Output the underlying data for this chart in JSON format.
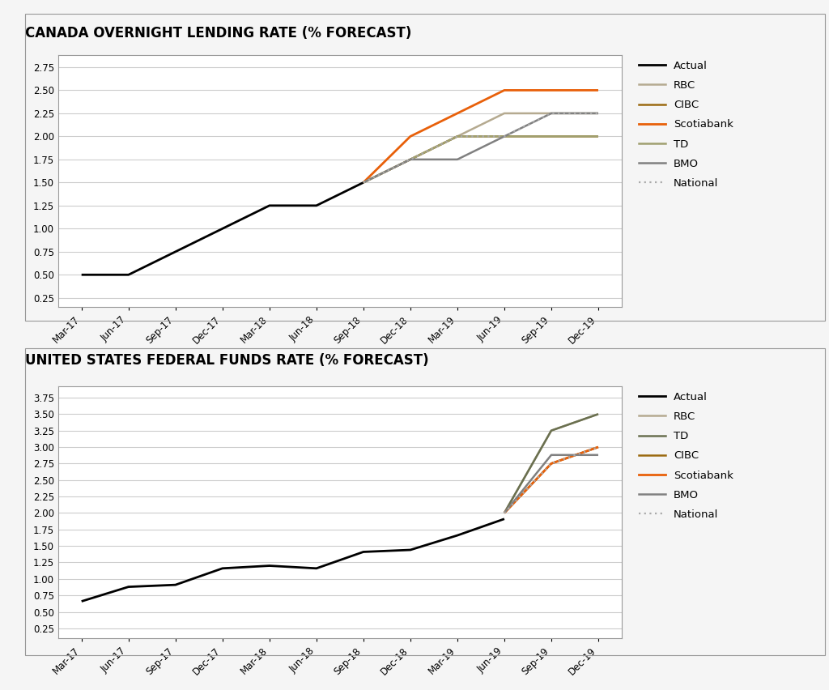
{
  "title1": "CANADA OVERNIGHT LENDING RATE (% FORECAST)",
  "title2": "UNITED STATES FEDERAL FUNDS RATE (% FORECAST)",
  "x_labels": [
    "Mar-17",
    "Jun-17",
    "Sep-17",
    "Dec-17",
    "Mar-18",
    "Jun-18",
    "Sep-18",
    "Dec-18",
    "Mar-19",
    "Jun-19",
    "Sep-19",
    "Dec-19"
  ],
  "canada": {
    "actual": {
      "x": [
        0,
        1,
        2,
        3,
        4,
        5,
        6
      ],
      "y": [
        0.5,
        0.5,
        0.75,
        1.0,
        1.25,
        1.25,
        1.5
      ],
      "color": "#000000",
      "lw": 2.0,
      "linestyle": "solid",
      "label": "Actual"
    },
    "rbc": {
      "x": [
        6,
        7,
        8,
        9,
        10,
        11
      ],
      "y": [
        1.5,
        1.75,
        2.0,
        2.25,
        2.25,
        2.25
      ],
      "color": "#b5aa90",
      "lw": 1.8,
      "linestyle": "solid",
      "label": "RBC"
    },
    "cibc": {
      "x": [
        6,
        7,
        8,
        9,
        10,
        11
      ],
      "y": [
        1.5,
        1.75,
        2.0,
        2.0,
        2.0,
        2.0
      ],
      "color": "#9B6A10",
      "lw": 1.8,
      "linestyle": "solid",
      "label": "CIBC"
    },
    "scotiabank": {
      "x": [
        6,
        7,
        8,
        9,
        10,
        11
      ],
      "y": [
        1.5,
        2.0,
        2.25,
        2.5,
        2.5,
        2.5
      ],
      "color": "#E8600A",
      "lw": 2.0,
      "linestyle": "solid",
      "label": "Scotiabank"
    },
    "td": {
      "x": [
        6,
        7,
        8,
        9,
        10,
        11
      ],
      "y": [
        1.5,
        1.75,
        2.0,
        2.0,
        2.0,
        2.0
      ],
      "color": "#a0a070",
      "lw": 1.8,
      "linestyle": "solid",
      "label": "TD"
    },
    "bmo": {
      "x": [
        6,
        7,
        8,
        9,
        10,
        11
      ],
      "y": [
        1.5,
        1.75,
        1.75,
        2.0,
        2.25,
        2.25
      ],
      "color": "#808080",
      "lw": 1.8,
      "linestyle": "solid",
      "label": "BMO"
    },
    "national": {
      "x": [
        6,
        7,
        8,
        9,
        10,
        11
      ],
      "y": [
        1.5,
        1.75,
        2.0,
        2.0,
        2.25,
        2.25
      ],
      "color": "#aaaaaa",
      "lw": 1.6,
      "linestyle": "dotted",
      "label": "National"
    }
  },
  "us": {
    "actual": {
      "x": [
        0,
        1,
        2,
        3,
        4,
        5,
        6,
        7,
        8,
        9
      ],
      "y": [
        0.66,
        0.88,
        0.91,
        1.16,
        1.2,
        1.16,
        1.41,
        1.44,
        1.66,
        1.91
      ],
      "color": "#000000",
      "lw": 2.0,
      "linestyle": "solid",
      "label": "Actual"
    },
    "rbc": {
      "x": [
        9,
        10,
        11
      ],
      "y": [
        2.0,
        3.25,
        3.5
      ],
      "color": "#b5aa90",
      "lw": 1.8,
      "linestyle": "solid",
      "label": "RBC"
    },
    "td": {
      "x": [
        9,
        10,
        11
      ],
      "y": [
        2.0,
        3.25,
        3.5
      ],
      "color": "#6a7050",
      "lw": 1.8,
      "linestyle": "solid",
      "label": "TD"
    },
    "cibc": {
      "x": [
        9,
        10,
        11
      ],
      "y": [
        2.0,
        2.75,
        3.0
      ],
      "color": "#9B6A10",
      "lw": 1.8,
      "linestyle": "solid",
      "label": "CIBC"
    },
    "scotiabank": {
      "x": [
        9,
        10,
        11
      ],
      "y": [
        2.0,
        2.75,
        3.0
      ],
      "color": "#E8600A",
      "lw": 2.0,
      "linestyle": "solid",
      "label": "Scotiabank"
    },
    "bmo": {
      "x": [
        9,
        10,
        11
      ],
      "y": [
        2.0,
        2.88,
        2.88
      ],
      "color": "#808080",
      "lw": 1.8,
      "linestyle": "solid",
      "label": "BMO"
    },
    "national": {
      "x": [
        9,
        10,
        11
      ],
      "y": [
        2.0,
        2.75,
        3.0
      ],
      "color": "#aaaaaa",
      "lw": 1.6,
      "linestyle": "dotted",
      "label": "National"
    }
  },
  "canada_ylim": [
    0.15,
    2.88
  ],
  "canada_yticks": [
    0.25,
    0.5,
    0.75,
    1.0,
    1.25,
    1.5,
    1.75,
    2.0,
    2.25,
    2.5,
    2.75
  ],
  "us_ylim": [
    0.1,
    3.92
  ],
  "us_yticks": [
    0.25,
    0.5,
    0.75,
    1.0,
    1.25,
    1.5,
    1.75,
    2.0,
    2.25,
    2.5,
    2.75,
    3.0,
    3.25,
    3.5,
    3.75
  ],
  "bg_color": "#f5f5f5",
  "plot_bg_color": "#ffffff",
  "grid_color": "#cccccc",
  "title_fontsize": 12,
  "tick_fontsize": 8.5,
  "legend_fontsize": 9.5
}
